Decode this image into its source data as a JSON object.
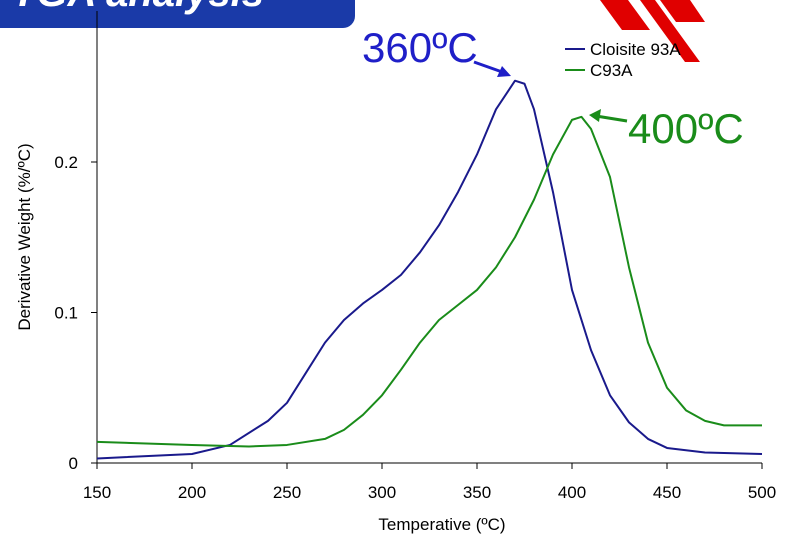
{
  "chart_data": {
    "type": "line",
    "title": "TGA analysis",
    "x_label": "Temperative (ºC)",
    "y_label": "Derivative Weight (%/ºC)",
    "xlim": [
      150,
      500
    ],
    "xticks": [
      150,
      200,
      250,
      300,
      350,
      400,
      450,
      500
    ],
    "ylim": [
      0,
      0.3
    ],
    "yticks": [
      0,
      0.1,
      0.2
    ],
    "legend": "upper-right",
    "annotations": [
      {
        "text": "360ºC",
        "color": "#1f1fc8"
      },
      {
        "text": "400ºC",
        "color": "#1a8c1a"
      }
    ],
    "series": [
      {
        "name": "Cloisite 93A",
        "color": "#1a1a8c",
        "x": [
          150,
          200,
          220,
          240,
          250,
          260,
          270,
          280,
          290,
          300,
          310,
          320,
          330,
          340,
          350,
          360,
          370,
          375,
          380,
          390,
          400,
          410,
          420,
          430,
          440,
          450,
          470,
          500
        ],
        "values": [
          0.003,
          0.006,
          0.012,
          0.028,
          0.04,
          0.06,
          0.08,
          0.095,
          0.106,
          0.115,
          0.125,
          0.14,
          0.158,
          0.18,
          0.205,
          0.235,
          0.254,
          0.252,
          0.235,
          0.18,
          0.115,
          0.075,
          0.045,
          0.027,
          0.016,
          0.01,
          0.007,
          0.006
        ]
      },
      {
        "name": "C93A",
        "color": "#1a8c1a",
        "x": [
          150,
          200,
          230,
          250,
          270,
          280,
          290,
          300,
          310,
          320,
          330,
          340,
          350,
          360,
          370,
          380,
          390,
          400,
          405,
          410,
          420,
          430,
          440,
          450,
          460,
          470,
          480,
          500
        ],
        "values": [
          0.014,
          0.012,
          0.011,
          0.012,
          0.016,
          0.022,
          0.032,
          0.045,
          0.062,
          0.08,
          0.095,
          0.105,
          0.115,
          0.13,
          0.15,
          0.175,
          0.205,
          0.228,
          0.23,
          0.222,
          0.19,
          0.13,
          0.08,
          0.05,
          0.035,
          0.028,
          0.025,
          0.025
        ]
      }
    ]
  }
}
